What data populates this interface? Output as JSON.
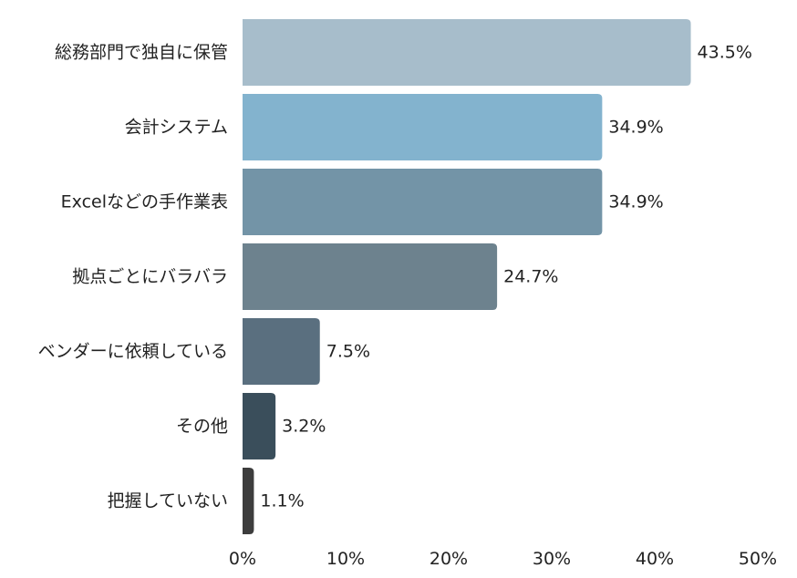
{
  "chart_data": {
    "type": "bar",
    "orientation": "horizontal",
    "title": "",
    "xlabel": "",
    "ylabel": "",
    "categories": [
      "総務部門で独自に保管",
      "会計システム",
      "Excelなどの手作業表",
      "拠点ごとにバラバラ",
      "ベンダーに依頼している",
      "その他",
      "把握していない"
    ],
    "values": [
      43.5,
      34.9,
      34.9,
      24.7,
      7.5,
      3.2,
      1.1
    ],
    "value_labels": [
      "43.5%",
      "34.9%",
      "34.9%",
      "24.7%",
      "7.5%",
      "3.2%",
      "1.1%"
    ],
    "bar_colors": [
      "#a7bdcb",
      "#83b3ce",
      "#7394a7",
      "#6d828e",
      "#5a6f7f",
      "#3a4e5b",
      "#3d3d3d"
    ],
    "xlim": [
      0,
      50
    ],
    "x_ticks": [
      0,
      10,
      20,
      30,
      40,
      50
    ],
    "x_tick_labels": [
      "0%",
      "10%",
      "20%",
      "30%",
      "40%",
      "50%"
    ],
    "grid": false,
    "legend": "none"
  }
}
